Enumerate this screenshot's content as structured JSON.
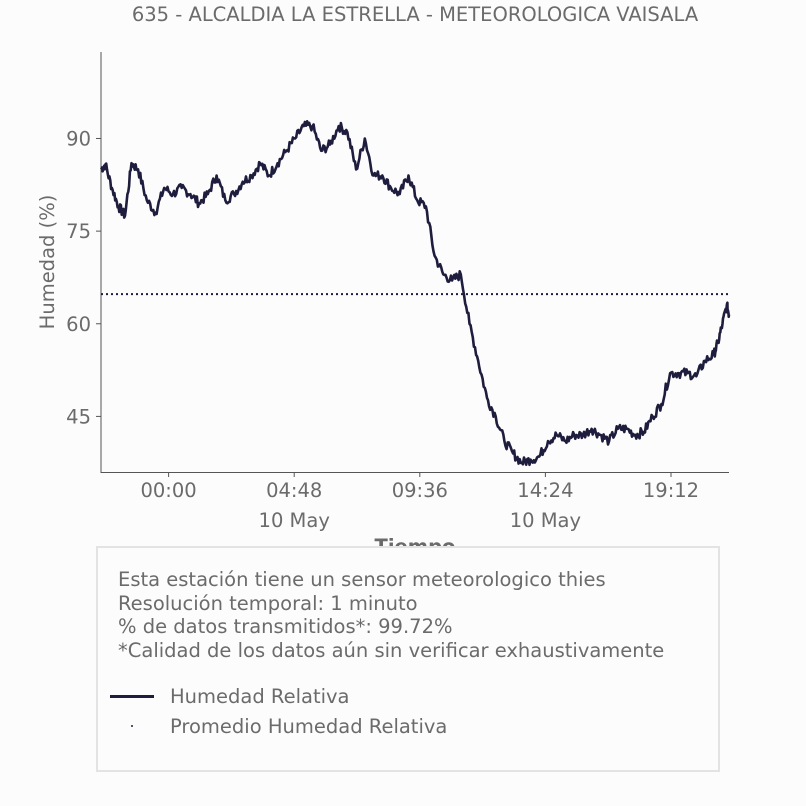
{
  "chart_data": {
    "type": "line",
    "title": "635 - ALCALDIA LA ESTRELLA - METEOROLOGICA VAISALA",
    "xlabel": "Tiempo",
    "ylabel": "Humedad (%)",
    "x_ticks": [
      {
        "time": "00:00",
        "date": "",
        "label": "00:00",
        "sublabel": ""
      },
      {
        "time": "04:48",
        "date": "10 May",
        "label": "04:48",
        "sublabel": "10 May"
      },
      {
        "time": "09:36",
        "date": "",
        "label": "09:36",
        "sublabel": ""
      },
      {
        "time": "14:24",
        "date": "10 May",
        "label": "14:24",
        "sublabel": "10 May"
      },
      {
        "time": "19:12",
        "date": "",
        "label": "19:12",
        "sublabel": ""
      }
    ],
    "xlim": [
      "09 May 21:25",
      "10 May 21:25"
    ],
    "y_ticks": [
      45,
      60,
      75,
      90
    ],
    "ylim": [
      36,
      104
    ],
    "grid": false,
    "series": [
      {
        "name": "Humedad Relativa",
        "color": "#1f1d3d",
        "style": "solid",
        "x": [
          "21:25",
          "21:35",
          "21:50",
          "22:05",
          "22:20",
          "22:35",
          "22:50",
          "23:10",
          "23:30",
          "23:50",
          "00:10",
          "00:30",
          "00:50",
          "01:10",
          "01:30",
          "01:50",
          "02:10",
          "02:30",
          "02:50",
          "03:10",
          "03:30",
          "03:50",
          "04:10",
          "04:30",
          "04:50",
          "05:10",
          "05:30",
          "05:50",
          "06:10",
          "06:30",
          "06:50",
          "07:10",
          "07:30",
          "07:50",
          "08:10",
          "08:30",
          "08:50",
          "09:10",
          "09:30",
          "09:50",
          "10:10",
          "10:30",
          "10:50",
          "11:10",
          "11:30",
          "11:50",
          "12:10",
          "12:30",
          "12:50",
          "13:10",
          "13:30",
          "13:50",
          "14:10",
          "14:30",
          "14:50",
          "15:10",
          "15:30",
          "15:50",
          "16:10",
          "16:30",
          "16:50",
          "17:10",
          "17:30",
          "17:50",
          "18:10",
          "18:30",
          "18:50",
          "19:10",
          "19:30",
          "19:50",
          "20:10",
          "20:30",
          "20:50",
          "21:00",
          "21:10",
          "21:20",
          "21:25"
        ],
        "y": [
          85,
          85.8,
          82,
          79,
          77.5,
          86,
          85,
          80,
          78,
          82,
          81,
          82,
          81,
          79.5,
          81,
          84,
          80,
          81,
          83,
          84,
          86,
          84,
          86,
          88,
          90,
          92,
          92,
          88,
          89,
          92,
          91,
          85,
          90,
          84,
          84,
          82,
          81,
          84,
          80,
          79,
          71,
          68,
          67,
          68,
          60,
          54,
          48,
          45,
          41,
          39,
          37.5,
          38,
          38.5,
          41,
          42,
          41,
          42,
          42,
          43,
          42,
          41,
          43,
          43,
          42,
          42.5,
          45,
          47,
          52,
          52,
          52,
          51.5,
          54,
          55,
          57,
          60,
          63,
          61.5
        ]
      },
      {
        "name": "Promedio Humedad Relativa",
        "color": "#1f1d3d",
        "style": "dotted",
        "value": 64.8
      }
    ]
  },
  "info": {
    "lines": [
      "Esta estación tiene un sensor meteorologico thies",
      "Resolución temporal: 1 minuto",
      "% de datos transmitidos*: 99.72%",
      "*Calidad de los datos aún sin verificar exhaustivamente"
    ]
  },
  "legend": {
    "line_label": "Humedad Relativa",
    "mean_label": "Promedio Humedad Relativa"
  }
}
